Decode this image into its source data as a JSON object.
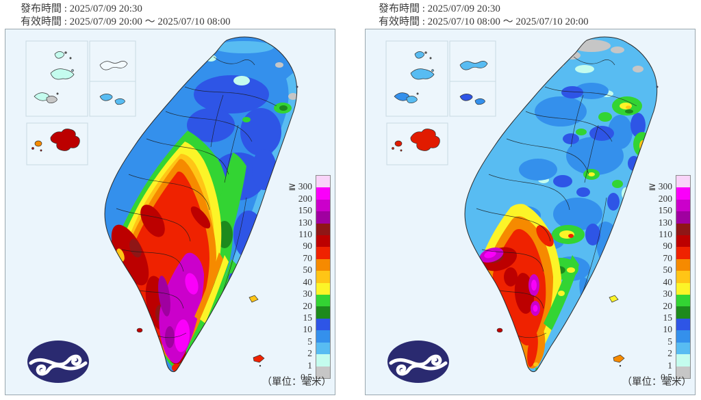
{
  "panels": [
    {
      "issue_line": "發布時間 : 2025/07/09 20:30",
      "valid_line": "有效時間 : 2025/07/09 20:00 ～ 2025/07/10 08:00",
      "unit_text": "（單位：毫米）"
    },
    {
      "issue_line": "發布時間 : 2025/07/09 20:30",
      "valid_line": "有效時間 : 2025/07/10 08:00 ～ 2025/07/10 20:00",
      "unit_text": "（單位：毫米）"
    }
  ],
  "legend": {
    "levels": [
      {
        "prefix": "≧",
        "label": "300",
        "color": "#F9D4F9"
      },
      {
        "label": "200",
        "color": "#FA00FA"
      },
      {
        "label": "150",
        "color": "#CB00CB"
      },
      {
        "label": "130",
        "color": "#A000A0"
      },
      {
        "label": "110",
        "color": "#8F1616"
      },
      {
        "label": "90",
        "color": "#BC0000"
      },
      {
        "label": "70",
        "color": "#EF2200"
      },
      {
        "label": "50",
        "color": "#F68A00"
      },
      {
        "label": "40",
        "color": "#FFC516"
      },
      {
        "label": "30",
        "color": "#FCF428"
      },
      {
        "label": "20",
        "color": "#33D433"
      },
      {
        "label": "15",
        "color": "#1D8A1D"
      },
      {
        "label": "10",
        "color": "#2E55E6"
      },
      {
        "label": "5",
        "color": "#3490EC"
      },
      {
        "label": "2",
        "color": "#58BCF2"
      },
      {
        "label": "1",
        "color": "#C4FCEE"
      },
      {
        "label": "0.5",
        "color": "#C6C6C6"
      }
    ]
  },
  "colors": {
    "panel_bg": "#EBF5FC",
    "logo_navy": "#2A2A70"
  }
}
